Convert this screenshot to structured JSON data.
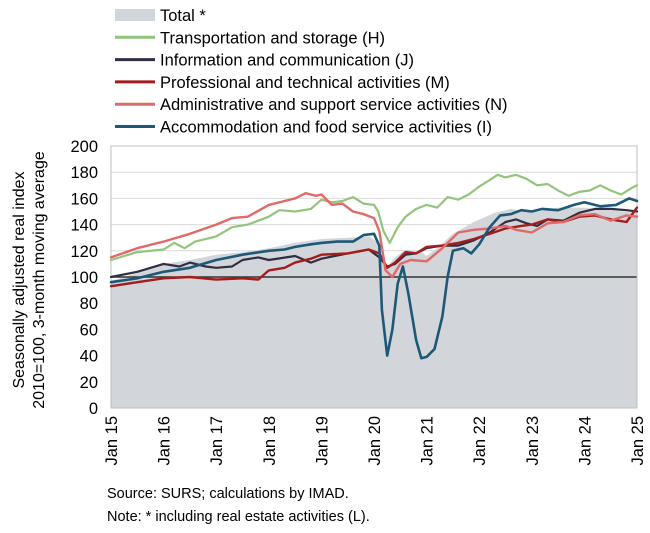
{
  "chart_data": {
    "type": "line",
    "ylabel_line1": "Seasonally adjusted real index",
    "ylabel_line2": "2010=100, 3-month moving average",
    "ylim": [
      0,
      200
    ],
    "yticks": [
      0,
      20,
      40,
      60,
      80,
      100,
      120,
      140,
      160,
      180,
      200
    ],
    "xlim": [
      2015,
      2025
    ],
    "xticks": [
      {
        "x": 2015,
        "label": "Jan 15"
      },
      {
        "x": 2016,
        "label": "Jan 16"
      },
      {
        "x": 2017,
        "label": "Jan 17"
      },
      {
        "x": 2018,
        "label": "Jan 18"
      },
      {
        "x": 2019,
        "label": "Jan 19"
      },
      {
        "x": 2020,
        "label": "Jan 20"
      },
      {
        "x": 2021,
        "label": "Jan 21"
      },
      {
        "x": 2022,
        "label": "Jan 22"
      },
      {
        "x": 2023,
        "label": "Jan 23"
      },
      {
        "x": 2024,
        "label": "Jan 24"
      },
      {
        "x": 2025,
        "label": "Jan 25"
      }
    ],
    "grid": "horizontal",
    "reference_line": 100,
    "legend_position": "top-left",
    "area_series": {
      "name": "Total *",
      "color": "#d2d5d9",
      "points": [
        [
          2015,
          97
        ],
        [
          2015.5,
          103
        ],
        [
          2016,
          110
        ],
        [
          2016.5,
          113
        ],
        [
          2017,
          117
        ],
        [
          2017.5,
          119
        ],
        [
          2018,
          122
        ],
        [
          2018.5,
          126
        ],
        [
          2019,
          129
        ],
        [
          2019.5,
          130
        ],
        [
          2019.92,
          131
        ],
        [
          2020.1,
          125
        ],
        [
          2020.25,
          108
        ],
        [
          2020.4,
          115
        ],
        [
          2020.6,
          121
        ],
        [
          2020.9,
          119
        ],
        [
          2021,
          116
        ],
        [
          2021.2,
          122
        ],
        [
          2021.5,
          133
        ],
        [
          2021.9,
          142
        ],
        [
          2022.3,
          149
        ],
        [
          2022.6,
          152
        ],
        [
          2023,
          149
        ],
        [
          2023.5,
          153
        ],
        [
          2024,
          153
        ],
        [
          2024.5,
          151
        ],
        [
          2025,
          149
        ]
      ]
    },
    "series": [
      {
        "name": "Transportation and storage (H)",
        "color": "#93c47d",
        "width": 2.2,
        "points": [
          [
            2015,
            113
          ],
          [
            2015.5,
            119
          ],
          [
            2016,
            121
          ],
          [
            2016.2,
            126
          ],
          [
            2016.4,
            122
          ],
          [
            2016.6,
            127
          ],
          [
            2017,
            131
          ],
          [
            2017.3,
            138
          ],
          [
            2017.6,
            140
          ],
          [
            2018,
            146
          ],
          [
            2018.2,
            151
          ],
          [
            2018.5,
            150
          ],
          [
            2018.8,
            152
          ],
          [
            2019,
            159
          ],
          [
            2019.2,
            157
          ],
          [
            2019.4,
            158
          ],
          [
            2019.6,
            161
          ],
          [
            2019.8,
            156
          ],
          [
            2020,
            155
          ],
          [
            2020.08,
            150
          ],
          [
            2020.18,
            135
          ],
          [
            2020.3,
            126
          ],
          [
            2020.45,
            138
          ],
          [
            2020.6,
            146
          ],
          [
            2020.8,
            152
          ],
          [
            2021,
            155
          ],
          [
            2021.2,
            153
          ],
          [
            2021.4,
            161
          ],
          [
            2021.6,
            159
          ],
          [
            2021.8,
            163
          ],
          [
            2022,
            169
          ],
          [
            2022.2,
            174
          ],
          [
            2022.35,
            178
          ],
          [
            2022.5,
            176
          ],
          [
            2022.7,
            178
          ],
          [
            2022.9,
            175
          ],
          [
            2023.1,
            170
          ],
          [
            2023.3,
            171
          ],
          [
            2023.5,
            166
          ],
          [
            2023.7,
            162
          ],
          [
            2023.9,
            165
          ],
          [
            2024.1,
            166
          ],
          [
            2024.3,
            170
          ],
          [
            2024.5,
            166
          ],
          [
            2024.7,
            163
          ],
          [
            2024.9,
            168
          ],
          [
            2025,
            170
          ]
        ]
      },
      {
        "name": "Information and communication (J)",
        "color": "#2f2e44",
        "width": 2.2,
        "points": [
          [
            2015,
            100
          ],
          [
            2015.5,
            104
          ],
          [
            2016,
            110
          ],
          [
            2016.3,
            108
          ],
          [
            2016.5,
            111
          ],
          [
            2016.8,
            108
          ],
          [
            2017,
            107
          ],
          [
            2017.3,
            108
          ],
          [
            2017.5,
            113
          ],
          [
            2017.8,
            115
          ],
          [
            2018,
            113
          ],
          [
            2018.5,
            116
          ],
          [
            2018.8,
            111
          ],
          [
            2019,
            114
          ],
          [
            2019.5,
            118
          ],
          [
            2019.9,
            121
          ],
          [
            2020.1,
            115
          ],
          [
            2020.25,
            108
          ],
          [
            2020.4,
            110
          ],
          [
            2020.6,
            117
          ],
          [
            2020.8,
            118
          ],
          [
            2021,
            122
          ],
          [
            2021.3,
            124
          ],
          [
            2021.6,
            124
          ],
          [
            2021.9,
            128
          ],
          [
            2022.2,
            134
          ],
          [
            2022.5,
            142
          ],
          [
            2022.7,
            144
          ],
          [
            2022.9,
            141
          ],
          [
            2023.1,
            139
          ],
          [
            2023.3,
            144
          ],
          [
            2023.6,
            143
          ],
          [
            2023.9,
            149
          ],
          [
            2024.2,
            152
          ],
          [
            2024.5,
            152
          ],
          [
            2024.8,
            151
          ],
          [
            2025,
            150
          ]
        ]
      },
      {
        "name": "Professional and technical activities (M)",
        "color": "#a51c1c",
        "width": 2.4,
        "points": [
          [
            2015,
            93
          ],
          [
            2015.5,
            96
          ],
          [
            2016,
            99
          ],
          [
            2016.5,
            100
          ],
          [
            2017,
            98
          ],
          [
            2017.5,
            99
          ],
          [
            2017.8,
            98
          ],
          [
            2018,
            105
          ],
          [
            2018.3,
            107
          ],
          [
            2018.5,
            111
          ],
          [
            2018.8,
            114
          ],
          [
            2019,
            117
          ],
          [
            2019.5,
            118
          ],
          [
            2019.9,
            121
          ],
          [
            2020.1,
            118
          ],
          [
            2020.25,
            107
          ],
          [
            2020.4,
            111
          ],
          [
            2020.6,
            119
          ],
          [
            2020.8,
            118
          ],
          [
            2021,
            123
          ],
          [
            2021.3,
            124
          ],
          [
            2021.6,
            126
          ],
          [
            2021.9,
            129
          ],
          [
            2022.2,
            133
          ],
          [
            2022.5,
            137
          ],
          [
            2022.8,
            139
          ],
          [
            2023,
            140
          ],
          [
            2023.3,
            144
          ],
          [
            2023.6,
            142
          ],
          [
            2023.9,
            146
          ],
          [
            2024.2,
            147
          ],
          [
            2024.5,
            144
          ],
          [
            2024.8,
            142
          ],
          [
            2025,
            153
          ]
        ]
      },
      {
        "name": "Administrative and support service activities (N)",
        "color": "#e06a6a",
        "width": 2.4,
        "points": [
          [
            2015,
            115
          ],
          [
            2015.5,
            122
          ],
          [
            2016,
            127
          ],
          [
            2016.5,
            133
          ],
          [
            2017,
            140
          ],
          [
            2017.3,
            145
          ],
          [
            2017.6,
            146
          ],
          [
            2018,
            155
          ],
          [
            2018.3,
            158
          ],
          [
            2018.5,
            160
          ],
          [
            2018.7,
            164
          ],
          [
            2018.9,
            162
          ],
          [
            2019,
            163
          ],
          [
            2019.2,
            155
          ],
          [
            2019.4,
            156
          ],
          [
            2019.6,
            150
          ],
          [
            2019.8,
            148
          ],
          [
            2020,
            145
          ],
          [
            2020.1,
            135
          ],
          [
            2020.22,
            105
          ],
          [
            2020.35,
            100
          ],
          [
            2020.5,
            110
          ],
          [
            2020.7,
            113
          ],
          [
            2021,
            112
          ],
          [
            2021.3,
            122
          ],
          [
            2021.6,
            134
          ],
          [
            2021.9,
            136
          ],
          [
            2022.2,
            137
          ],
          [
            2022.5,
            139
          ],
          [
            2022.7,
            136
          ],
          [
            2023,
            134
          ],
          [
            2023.3,
            141
          ],
          [
            2023.6,
            142
          ],
          [
            2023.9,
            147
          ],
          [
            2024.2,
            148
          ],
          [
            2024.5,
            143
          ],
          [
            2024.8,
            147
          ],
          [
            2025,
            146
          ]
        ]
      },
      {
        "name": "Accommodation and food service activities (I)",
        "color": "#1d5876",
        "width": 2.6,
        "points": [
          [
            2015,
            96
          ],
          [
            2015.5,
            99
          ],
          [
            2016,
            104
          ],
          [
            2016.5,
            107
          ],
          [
            2017,
            113
          ],
          [
            2017.5,
            117
          ],
          [
            2018,
            120
          ],
          [
            2018.3,
            121
          ],
          [
            2018.5,
            123
          ],
          [
            2018.8,
            125
          ],
          [
            2019,
            126
          ],
          [
            2019.3,
            127
          ],
          [
            2019.6,
            127
          ],
          [
            2019.8,
            132
          ],
          [
            2020,
            133
          ],
          [
            2020.1,
            124
          ],
          [
            2020.15,
            75
          ],
          [
            2020.25,
            40
          ],
          [
            2020.35,
            60
          ],
          [
            2020.45,
            95
          ],
          [
            2020.55,
            108
          ],
          [
            2020.65,
            88
          ],
          [
            2020.8,
            52
          ],
          [
            2020.9,
            38
          ],
          [
            2021,
            39
          ],
          [
            2021.15,
            45
          ],
          [
            2021.3,
            70
          ],
          [
            2021.4,
            100
          ],
          [
            2021.5,
            120
          ],
          [
            2021.7,
            122
          ],
          [
            2021.85,
            118
          ],
          [
            2022,
            125
          ],
          [
            2022.2,
            138
          ],
          [
            2022.4,
            147
          ],
          [
            2022.6,
            148
          ],
          [
            2022.8,
            151
          ],
          [
            2023,
            150
          ],
          [
            2023.2,
            152
          ],
          [
            2023.5,
            151
          ],
          [
            2023.8,
            155
          ],
          [
            2024,
            157
          ],
          [
            2024.3,
            154
          ],
          [
            2024.6,
            155
          ],
          [
            2024.85,
            160
          ],
          [
            2025,
            158
          ]
        ]
      }
    ]
  },
  "footer": {
    "source": "Source:  SURS; calculations by IMAD.",
    "note": "Note: * including real estate activities (L)."
  }
}
